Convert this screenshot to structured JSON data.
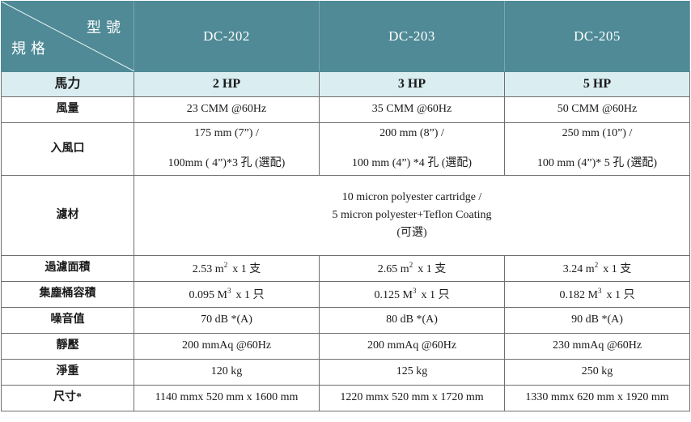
{
  "header": {
    "corner_top": "型號",
    "corner_bottom": "規格",
    "models": [
      "DC-202",
      "DC-203",
      "DC-205"
    ]
  },
  "rows": {
    "horsepower": {
      "label": "馬力",
      "values": [
        "2 HP",
        "3 HP",
        "5 HP"
      ]
    },
    "airflow": {
      "label": "風量",
      "values": [
        "23 CMM @60Hz",
        "35 CMM @60Hz",
        "50 CMM @60Hz"
      ]
    },
    "inlet": {
      "label": "入風口",
      "line1": [
        "175 mm (7”) /",
        "200 mm (8”) /",
        "250 mm (10”) /"
      ],
      "line2": [
        "100mm ( 4”)*3 孔 (選配)",
        "100 mm (4”) *4 孔 (選配)",
        "100 mm (4”)* 5 孔  (選配)"
      ]
    },
    "filter": {
      "label": "濾材",
      "lines": [
        "10 micron polyester cartridge /",
        "5 micron polyester+Teflon Coating",
        "(可選)"
      ]
    },
    "filter_area": {
      "label": "過濾面積",
      "values": [
        "2.53 m",
        "2.65 m",
        "3.24 m"
      ],
      "sup": "2",
      "suffix": [
        "x 1 支",
        "x 1 支",
        "x 1 支"
      ]
    },
    "bin_volume": {
      "label": "集塵桶容積",
      "values": [
        "0.095 M",
        "0.125 M",
        "0.182 M"
      ],
      "sup": "3",
      "suffix": [
        "x 1 只",
        "x 1 只",
        "x 1 只"
      ]
    },
    "noise": {
      "label": "噪音值",
      "values": [
        "70 dB *(A)",
        "80 dB *(A)",
        "90 dB *(A)"
      ]
    },
    "static_pressure": {
      "label": "靜壓",
      "values": [
        "200 mmAq  @60Hz",
        "200 mmAq  @60Hz",
        "230 mmAq  @60Hz"
      ]
    },
    "net_weight": {
      "label": "淨重",
      "values": [
        "120 kg",
        "125 kg",
        "250 kg"
      ]
    },
    "dimensions": {
      "label": "尺寸*",
      "values": [
        "1140 mmx 520 mm x 1600 mm",
        "1220 mmx 520 mm x 1720 mm",
        "1330 mmx 620 mm x 1920 mm"
      ]
    }
  }
}
